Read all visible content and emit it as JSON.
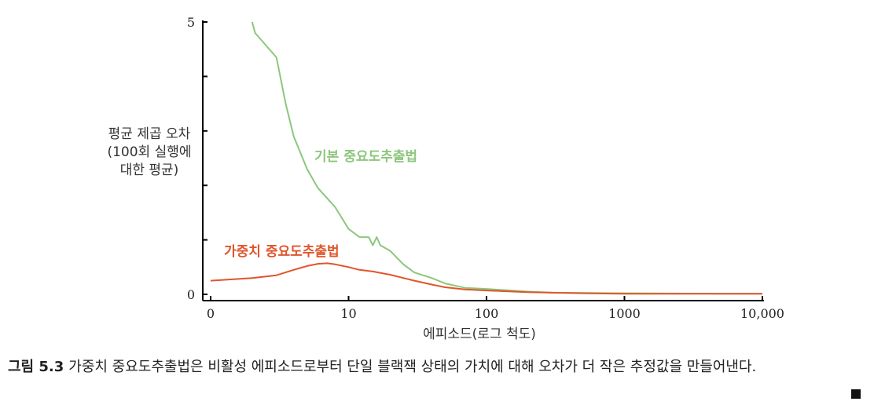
{
  "chart_data": {
    "type": "line",
    "ylabel": [
      "평균 제곱 오차",
      "(100회 실행에",
      "대한 평균)"
    ],
    "xlabel": "에피소드(로그 척도)",
    "x_scale": "log",
    "xlim": [
      1,
      10000
    ],
    "ylim": [
      0,
      5
    ],
    "x_ticks": [
      {
        "value": 1,
        "label": "0"
      },
      {
        "value": 10,
        "label": "10"
      },
      {
        "value": 100,
        "label": "100"
      },
      {
        "value": 1000,
        "label": "1000"
      },
      {
        "value": 10000,
        "label": "10,000"
      }
    ],
    "y_tick_labels": [
      {
        "value": 0,
        "label": "0"
      },
      {
        "value": 5,
        "label": "5"
      }
    ],
    "y_minor_ticks": [
      1,
      2,
      3,
      4
    ],
    "series": [
      {
        "name": "기본 중요도추출법",
        "color": "#8cc77c",
        "points": [
          [
            2,
            5.0
          ],
          [
            2.1,
            4.8
          ],
          [
            3,
            4.35
          ],
          [
            3.5,
            3.5
          ],
          [
            4,
            2.9
          ],
          [
            5,
            2.3
          ],
          [
            6,
            1.95
          ],
          [
            8,
            1.6
          ],
          [
            10,
            1.2
          ],
          [
            12,
            1.05
          ],
          [
            14,
            1.05
          ],
          [
            15,
            0.9
          ],
          [
            16,
            1.05
          ],
          [
            17,
            0.9
          ],
          [
            20,
            0.8
          ],
          [
            25,
            0.55
          ],
          [
            30,
            0.4
          ],
          [
            40,
            0.3
          ],
          [
            50,
            0.2
          ],
          [
            70,
            0.12
          ],
          [
            100,
            0.1
          ],
          [
            200,
            0.05
          ],
          [
            300,
            0.03
          ],
          [
            1000,
            0.02
          ],
          [
            10000,
            0.01
          ]
        ]
      },
      {
        "name": "가중치 중요도추출법",
        "color": "#e0552b",
        "points": [
          [
            1,
            0.25
          ],
          [
            2,
            0.3
          ],
          [
            3,
            0.35
          ],
          [
            4,
            0.45
          ],
          [
            5,
            0.52
          ],
          [
            6,
            0.56
          ],
          [
            7,
            0.57
          ],
          [
            8,
            0.55
          ],
          [
            10,
            0.5
          ],
          [
            12,
            0.45
          ],
          [
            15,
            0.42
          ],
          [
            20,
            0.36
          ],
          [
            25,
            0.3
          ],
          [
            30,
            0.25
          ],
          [
            40,
            0.18
          ],
          [
            50,
            0.13
          ],
          [
            70,
            0.09
          ],
          [
            100,
            0.07
          ],
          [
            200,
            0.04
          ],
          [
            500,
            0.02
          ],
          [
            1000,
            0.01
          ],
          [
            10000,
            0.01
          ]
        ]
      }
    ]
  },
  "caption": {
    "label": "그림 5.3",
    "text": "가중치 중요도추출법은 비활성 에피소드로부터 단일 블랙잭 상태의 가치에 대해 오차가 더 작은 추정값을 만들어낸다."
  }
}
